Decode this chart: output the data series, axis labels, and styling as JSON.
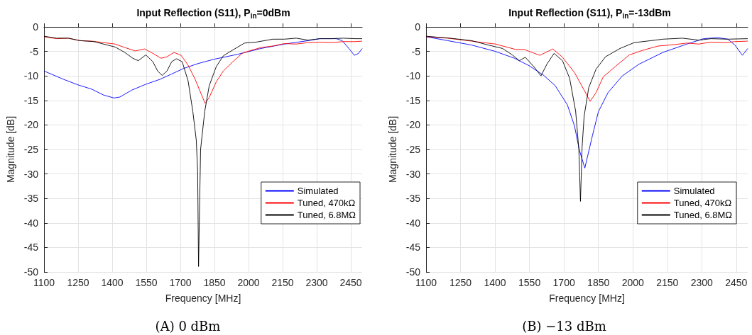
{
  "chart_data": [
    {
      "type": "line",
      "title": "Input Reflection (S11), P$_{in}$=0dBm",
      "xlabel": "Frequency [MHz]",
      "ylabel": "Magnitude [dB]",
      "annotations": [
        "(A) 0 dBm"
      ],
      "xlim": [
        1100,
        2500
      ],
      "xticks": [
        1100,
        1250,
        1400,
        1550,
        1700,
        1850,
        2000,
        2150,
        2300,
        2450
      ],
      "ylim": [
        -50,
        0
      ],
      "yticks": [
        -50,
        -45,
        -40,
        -35,
        -30,
        -25,
        -20,
        -15,
        -10,
        -5,
        0
      ],
      "grid": true,
      "legend": "right",
      "marker": "none",
      "series": [
        {
          "name": "Simulated",
          "color": "#0000ff",
          "x": [
            1100,
            1186,
            1248,
            1310,
            1362,
            1408,
            1434,
            1486,
            1548,
            1610,
            1662,
            1713,
            1776,
            1848,
            1951,
            2055,
            2158,
            2262,
            2314,
            2386,
            2412,
            2438,
            2466,
            2484,
            2500
          ],
          "values": [
            -9.0,
            -10.7,
            -11.8,
            -12.7,
            -13.9,
            -14.5,
            -14.3,
            -12.9,
            -11.7,
            -10.7,
            -9.6,
            -8.5,
            -7.5,
            -6.6,
            -5.6,
            -4.4,
            -3.5,
            -2.8,
            -2.4,
            -2.4,
            -2.8,
            -4.2,
            -5.8,
            -5.4,
            -4.4
          ]
        },
        {
          "name": "Tuned, 470kΩ",
          "color": "#ff0000",
          "x": [
            1100,
            1155,
            1207,
            1258,
            1310,
            1362,
            1413,
            1455,
            1501,
            1543,
            1579,
            1615,
            1641,
            1672,
            1703,
            1734,
            1765,
            1791,
            1809,
            1827,
            1858,
            1889,
            1931,
            1972,
            2003,
            2055,
            2107,
            2158,
            2210,
            2262,
            2314,
            2365,
            2417,
            2469,
            2500
          ],
          "values": [
            -2.0,
            -2.4,
            -2.3,
            -2.8,
            -2.9,
            -3.2,
            -3.5,
            -4.2,
            -4.9,
            -4.5,
            -5.4,
            -6.4,
            -6.1,
            -5.2,
            -5.8,
            -7.8,
            -10.7,
            -13.6,
            -15.6,
            -14.4,
            -11.2,
            -9.0,
            -7.1,
            -5.4,
            -4.9,
            -4.2,
            -3.9,
            -3.4,
            -3.5,
            -3.2,
            -3.1,
            -3.2,
            -3.0,
            -3.0,
            -2.9
          ]
        },
        {
          "name": "Tuned, 6.8MΩ",
          "color": "#000000",
          "x": [
            1100,
            1155,
            1207,
            1258,
            1320,
            1362,
            1413,
            1455,
            1491,
            1515,
            1548,
            1579,
            1600,
            1620,
            1641,
            1662,
            1682,
            1708,
            1734,
            1755,
            1770,
            1776,
            1780,
            1789,
            1807,
            1827,
            1858,
            1889,
            1931,
            1982,
            2034,
            2107,
            2158,
            2210,
            2262,
            2314,
            2365,
            2417,
            2469,
            2500
          ],
          "values": [
            -1.9,
            -2.3,
            -2.3,
            -2.8,
            -3.0,
            -3.5,
            -4.1,
            -5.2,
            -6.4,
            -6.9,
            -5.7,
            -7.1,
            -9.0,
            -9.9,
            -9.0,
            -7.1,
            -6.5,
            -7.1,
            -11.0,
            -17.3,
            -23.1,
            -29.4,
            -48.9,
            -25.0,
            -17.3,
            -12.0,
            -8.1,
            -5.9,
            -4.7,
            -3.3,
            -3.1,
            -2.5,
            -2.5,
            -2.3,
            -2.7,
            -2.4,
            -2.4,
            -2.3,
            -2.4,
            -2.4
          ]
        }
      ]
    },
    {
      "type": "line",
      "title": "Input Reflection (S11), P$_{in}$=-13dBm",
      "xlabel": "Frequency [MHz]",
      "ylabel": "Magnitude [dB]",
      "annotations": [
        "(B) −13 dBm"
      ],
      "xlim": [
        1100,
        2500
      ],
      "xticks": [
        1100,
        1250,
        1400,
        1550,
        1700,
        1850,
        2000,
        2150,
        2300,
        2450
      ],
      "ylim": [
        -50,
        0
      ],
      "yticks": [
        -50,
        -45,
        -40,
        -35,
        -30,
        -25,
        -20,
        -15,
        -10,
        -5,
        0
      ],
      "grid": true,
      "legend": "right",
      "marker": "none",
      "series": [
        {
          "name": "Simulated",
          "color": "#0000ff",
          "x": [
            1100,
            1194,
            1298,
            1402,
            1485,
            1548,
            1610,
            1662,
            1715,
            1746,
            1767,
            1791,
            1824,
            1850,
            1892,
            1954,
            2027,
            2131,
            2235,
            2308,
            2371,
            2413,
            2444,
            2477,
            2500
          ],
          "values": [
            -2.0,
            -2.8,
            -3.7,
            -5.0,
            -6.4,
            -7.9,
            -9.8,
            -12.0,
            -15.9,
            -20.2,
            -25.1,
            -28.8,
            -22.2,
            -17.3,
            -13.4,
            -10.0,
            -7.6,
            -5.2,
            -3.5,
            -2.4,
            -2.2,
            -2.5,
            -3.7,
            -5.8,
            -4.4
          ]
        },
        {
          "name": "Tuned, 470kΩ",
          "color": "#ff0000",
          "x": [
            1100,
            1194,
            1298,
            1402,
            1490,
            1527,
            1595,
            1652,
            1694,
            1746,
            1788,
            1814,
            1840,
            1871,
            1923,
            1985,
            2048,
            2110,
            2183,
            2235,
            2287,
            2340,
            2402,
            2444,
            2500
          ],
          "values": [
            -2.0,
            -2.3,
            -2.9,
            -3.5,
            -4.6,
            -4.6,
            -5.8,
            -4.5,
            -6.2,
            -9.3,
            -12.9,
            -15.2,
            -13.4,
            -10.2,
            -8.1,
            -5.7,
            -4.7,
            -3.9,
            -3.6,
            -3.3,
            -3.5,
            -3.1,
            -3.2,
            -3.0,
            -2.9
          ]
        },
        {
          "name": "Tuned, 6.8MΩ",
          "color": "#000000",
          "x": [
            1100,
            1204,
            1298,
            1371,
            1433,
            1475,
            1506,
            1532,
            1569,
            1600,
            1626,
            1657,
            1694,
            1725,
            1751,
            1765,
            1772,
            1779,
            1788,
            1808,
            1840,
            1881,
            1944,
            2006,
            2079,
            2131,
            2215,
            2287,
            2340,
            2413,
            2500
          ],
          "values": [
            -1.9,
            -2.3,
            -2.8,
            -3.7,
            -4.4,
            -5.7,
            -6.9,
            -6.2,
            -8.1,
            -10.0,
            -7.6,
            -5.4,
            -6.9,
            -10.5,
            -17.2,
            -25.0,
            -35.6,
            -24.6,
            -18.2,
            -12.4,
            -8.6,
            -6.1,
            -4.4,
            -3.2,
            -2.8,
            -2.5,
            -2.3,
            -2.7,
            -2.4,
            -2.5,
            -2.4
          ]
        }
      ]
    }
  ]
}
